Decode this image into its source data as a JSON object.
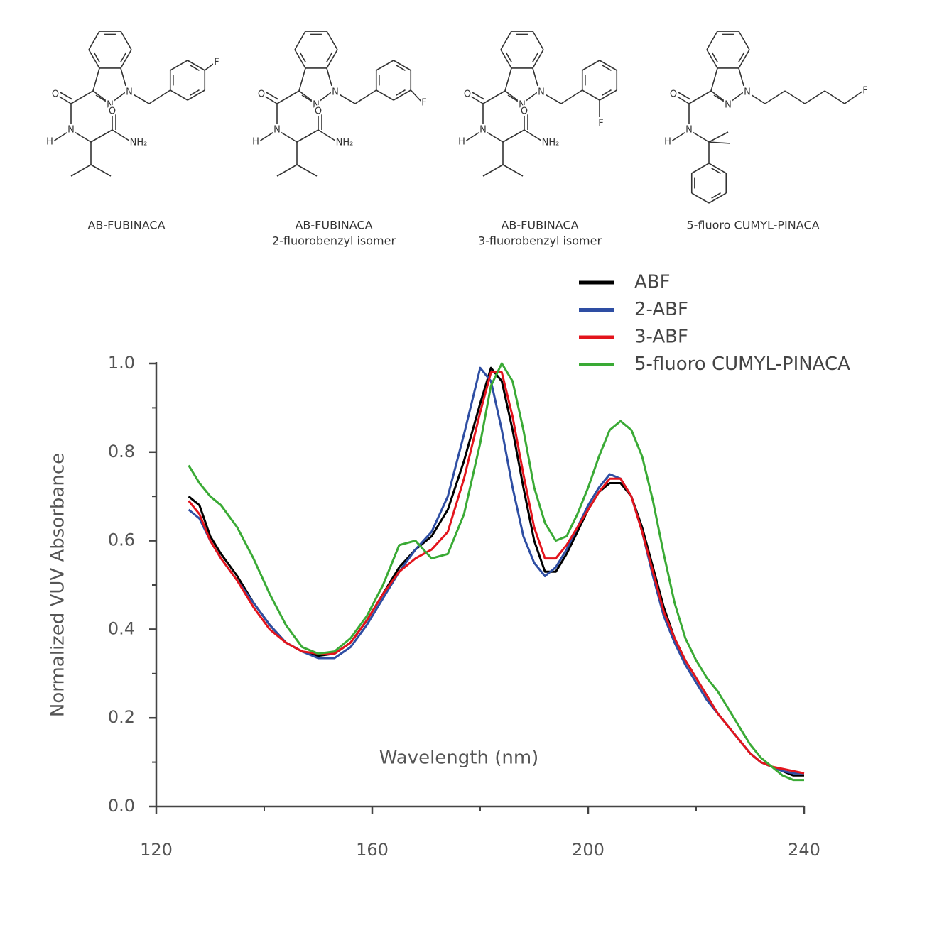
{
  "structures": [
    {
      "name": [
        "AB-FUBINACA"
      ],
      "atoms": [
        "N",
        "N",
        "O",
        "N",
        "H",
        "O",
        "NH₂",
        "F"
      ]
    },
    {
      "name": [
        "AB-FUBINACA",
        "2-fluorobenzyl isomer"
      ],
      "atoms": [
        "N",
        "N",
        "O",
        "N",
        "H",
        "O",
        "NH₂",
        "F"
      ]
    },
    {
      "name": [
        "AB-FUBINACA",
        "3-fluorobenzyl isomer"
      ],
      "atoms": [
        "N",
        "N",
        "O",
        "N",
        "H",
        "O",
        "NH₂",
        "F"
      ]
    },
    {
      "name": [
        "5-fluoro CUMYL-PINACA"
      ],
      "atoms": [
        "N",
        "N",
        "O",
        "N",
        "H",
        "F"
      ]
    }
  ],
  "chart_data": {
    "type": "line",
    "xlabel": "Wavelength (nm)",
    "ylabel": "Normalized VUV Absorbance",
    "xlim": [
      120,
      240
    ],
    "ylim": [
      0,
      1
    ],
    "xticks": [
      120,
      160,
      200,
      240
    ],
    "xminorticks": [
      140,
      180,
      220
    ],
    "yticks": [
      {
        "value": 0,
        "label": "0.0"
      },
      {
        "value": 0.2,
        "label": "0.2"
      },
      {
        "value": 0.4,
        "label": "0.4"
      },
      {
        "value": 0.6,
        "label": "0.6"
      },
      {
        "value": 0.8,
        "label": "0.8"
      },
      {
        "value": 1,
        "label": "1.0"
      }
    ],
    "yminorticks": [
      0.1,
      0.3,
      0.5,
      0.7,
      0.9
    ],
    "x": [
      126,
      128,
      130,
      132,
      135,
      138,
      141,
      144,
      147,
      150,
      153,
      156,
      159,
      162,
      165,
      168,
      171,
      174,
      177,
      180,
      182,
      184,
      186,
      188,
      190,
      192,
      194,
      196,
      198,
      200,
      202,
      204,
      206,
      208,
      210,
      212,
      214,
      216,
      218,
      220,
      222,
      224,
      226,
      228,
      230,
      232,
      234,
      236,
      238,
      240
    ],
    "series": [
      {
        "name": "ABF",
        "color": "#000000",
        "values": [
          0.7,
          0.68,
          0.61,
          0.57,
          0.52,
          0.46,
          0.41,
          0.37,
          0.35,
          0.34,
          0.345,
          0.37,
          0.42,
          0.48,
          0.54,
          0.58,
          0.61,
          0.67,
          0.78,
          0.91,
          0.99,
          0.96,
          0.85,
          0.72,
          0.6,
          0.53,
          0.53,
          0.57,
          0.62,
          0.67,
          0.71,
          0.73,
          0.73,
          0.7,
          0.63,
          0.54,
          0.45,
          0.38,
          0.33,
          0.29,
          0.25,
          0.21,
          0.18,
          0.15,
          0.12,
          0.1,
          0.09,
          0.08,
          0.07,
          0.07
        ]
      },
      {
        "name": "2-ABF",
        "color": "#2e4ea3",
        "values": [
          0.67,
          0.65,
          0.6,
          0.56,
          0.51,
          0.46,
          0.41,
          0.37,
          0.35,
          0.335,
          0.335,
          0.36,
          0.41,
          0.47,
          0.53,
          0.58,
          0.62,
          0.7,
          0.84,
          0.99,
          0.96,
          0.85,
          0.72,
          0.61,
          0.55,
          0.52,
          0.54,
          0.58,
          0.63,
          0.68,
          0.72,
          0.75,
          0.74,
          0.7,
          0.62,
          0.52,
          0.43,
          0.37,
          0.32,
          0.28,
          0.24,
          0.21,
          0.18,
          0.15,
          0.12,
          0.1,
          0.09,
          0.08,
          0.075,
          0.075
        ]
      },
      {
        "name": "3-ABF",
        "color": "#e3141c",
        "values": [
          0.69,
          0.66,
          0.6,
          0.56,
          0.51,
          0.45,
          0.4,
          0.37,
          0.35,
          0.345,
          0.345,
          0.37,
          0.42,
          0.48,
          0.53,
          0.56,
          0.58,
          0.62,
          0.74,
          0.89,
          0.98,
          0.98,
          0.88,
          0.75,
          0.63,
          0.56,
          0.56,
          0.59,
          0.63,
          0.67,
          0.71,
          0.74,
          0.74,
          0.7,
          0.62,
          0.53,
          0.44,
          0.38,
          0.33,
          0.29,
          0.25,
          0.21,
          0.18,
          0.15,
          0.12,
          0.1,
          0.09,
          0.085,
          0.08,
          0.075
        ]
      },
      {
        "name": "5-fluoro CUMYL-PINACA",
        "color": "#3aaa35",
        "values": [
          0.77,
          0.73,
          0.7,
          0.68,
          0.63,
          0.56,
          0.48,
          0.41,
          0.36,
          0.345,
          0.35,
          0.38,
          0.43,
          0.5,
          0.59,
          0.6,
          0.56,
          0.57,
          0.66,
          0.82,
          0.95,
          1.0,
          0.96,
          0.85,
          0.72,
          0.64,
          0.6,
          0.61,
          0.66,
          0.72,
          0.79,
          0.85,
          0.87,
          0.85,
          0.79,
          0.69,
          0.57,
          0.46,
          0.38,
          0.33,
          0.29,
          0.26,
          0.22,
          0.18,
          0.14,
          0.11,
          0.09,
          0.07,
          0.06,
          0.06
        ]
      }
    ]
  }
}
